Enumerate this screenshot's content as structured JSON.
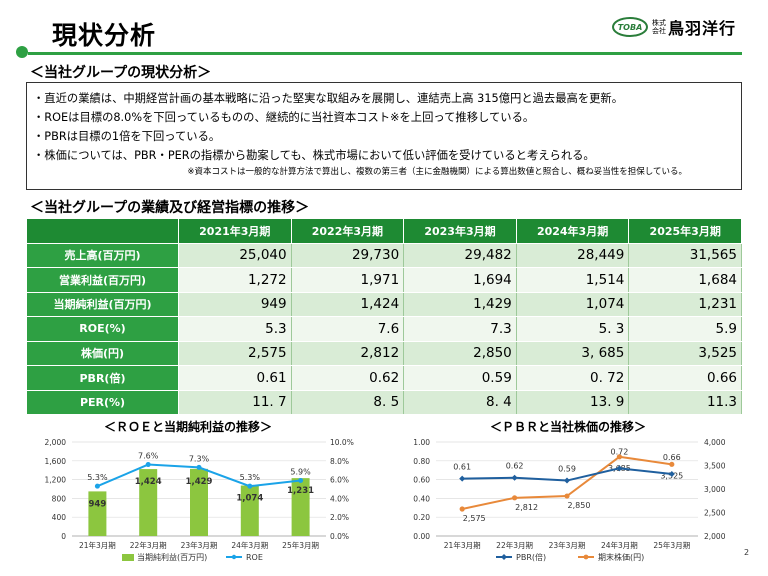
{
  "page": {
    "title": "現状分析",
    "number": "2"
  },
  "logo": {
    "badge": "TOBA",
    "kaisha": "株式会社",
    "name": "鳥羽洋行"
  },
  "summary": {
    "heading": "＜当社グループの現状分析＞",
    "lines": [
      "・直近の業績は、中期経営計画の基本戦略に沿った堅実な取組みを展開し、連結売上高 315億円と過去最高を更新。",
      "・ROEは目標の8.0%を下回っているものの、継続的に当社資本コスト※を上回って推移している。",
      "・PBRは目標の1倍を下回っている。",
      "・株価については、PBR・PERの指標から勘案しても、株式市場において低い評価を受けていると考えられる。"
    ],
    "note": "※資本コストは一般的な計算方法で算出し、複数の第三者（主に金融機関）による算出数値と照合し、概ね妥当性を担保している。"
  },
  "table": {
    "heading": "＜当社グループの業績及び経営指標の推移＞",
    "years": [
      "2021年3月期",
      "2022年3月期",
      "2023年3月期",
      "2024年3月期",
      "2025年3月期"
    ],
    "rows": [
      {
        "label": "売上高(百万円)",
        "values": [
          "25,040",
          "29,730",
          "29,482",
          "28,449",
          "31,565"
        ]
      },
      {
        "label": "営業利益(百万円)",
        "values": [
          "1,272",
          "1,971",
          "1,694",
          "1,514",
          "1,684"
        ]
      },
      {
        "label": "当期純利益(百万円)",
        "values": [
          "949",
          "1,424",
          "1,429",
          "1,074",
          "1,231"
        ]
      },
      {
        "label": "ROE(%)",
        "values": [
          "5.3",
          "7.6",
          "7.3",
          "5. 3",
          "5.9"
        ]
      },
      {
        "label": "株価(円)",
        "values": [
          "2,575",
          "2,812",
          "2,850",
          "3, 685",
          "3,525"
        ]
      },
      {
        "label": "PBR(倍)",
        "values": [
          "0.61",
          "0.62",
          "0.59",
          "0. 72",
          "0.66"
        ]
      },
      {
        "label": "PER(%)",
        "values": [
          "11. 7",
          "8. 5",
          "8. 4",
          "13. 9",
          "11.3"
        ]
      }
    ]
  },
  "chart_data": [
    {
      "type": "bar",
      "title": "＜ＲＯＥと当期純利益の推移＞",
      "categories": [
        "21年3月期",
        "22年3月期",
        "23年3月期",
        "24年3月期",
        "25年3月期"
      ],
      "series": [
        {
          "name": "当期純利益(百万円)",
          "kind": "bar",
          "axis": "left",
          "color": "#8cc63f",
          "values": [
            949,
            1424,
            1429,
            1074,
            1231
          ],
          "labels": [
            "949",
            "1,424",
            "1,429",
            "1,074",
            "1,231"
          ]
        },
        {
          "name": "ROE",
          "kind": "line",
          "axis": "right",
          "color": "#1aa3e8",
          "values": [
            5.3,
            7.6,
            7.3,
            5.3,
            5.9
          ],
          "labels": [
            "5.3%",
            "7.6%",
            "7.3%",
            "5.3%",
            "5.9%"
          ]
        }
      ],
      "y_left": {
        "min": 0,
        "max": 2000,
        "ticks": [
          "0",
          "400",
          "800",
          "1,200",
          "1,600",
          "2,000"
        ]
      },
      "y_right": {
        "min": 0,
        "max": 10,
        "ticks": [
          "0.0%",
          "2.0%",
          "4.0%",
          "6.0%",
          "8.0%",
          "10.0%"
        ]
      },
      "grid": true,
      "legend": "bottom"
    },
    {
      "type": "line",
      "title": "＜ＰＢＲと当社株価の推移＞",
      "categories": [
        "21年3月期",
        "22年3月期",
        "23年3月期",
        "24年3月期",
        "25年3月期"
      ],
      "series": [
        {
          "name": "PBR(倍)",
          "axis": "left",
          "color": "#1f5f9e",
          "values": [
            0.61,
            0.62,
            0.59,
            0.72,
            0.66
          ],
          "labels": [
            "0.61",
            "0.62",
            "0.59",
            "0.72",
            "0.66"
          ]
        },
        {
          "name": "期末株価(円)",
          "axis": "right",
          "color": "#e8893a",
          "values": [
            2575,
            2812,
            2850,
            3685,
            3525
          ],
          "labels": [
            "2,575",
            "2,812",
            "2,850",
            "3,685",
            "3,525"
          ]
        }
      ],
      "y_left": {
        "min": 0,
        "max": 1,
        "ticks": [
          "0.00",
          "0.20",
          "0.40",
          "0.60",
          "0.80",
          "1.00"
        ]
      },
      "y_right": {
        "min": 2000,
        "max": 4000,
        "ticks": [
          "2,000",
          "2,500",
          "3,000",
          "3,500",
          "4,000"
        ]
      },
      "grid": true,
      "legend": "bottom"
    }
  ],
  "colors": {
    "brand_green": "#2ea043",
    "header_green": "#1e8a33",
    "row_light": "#d9ecd6"
  }
}
